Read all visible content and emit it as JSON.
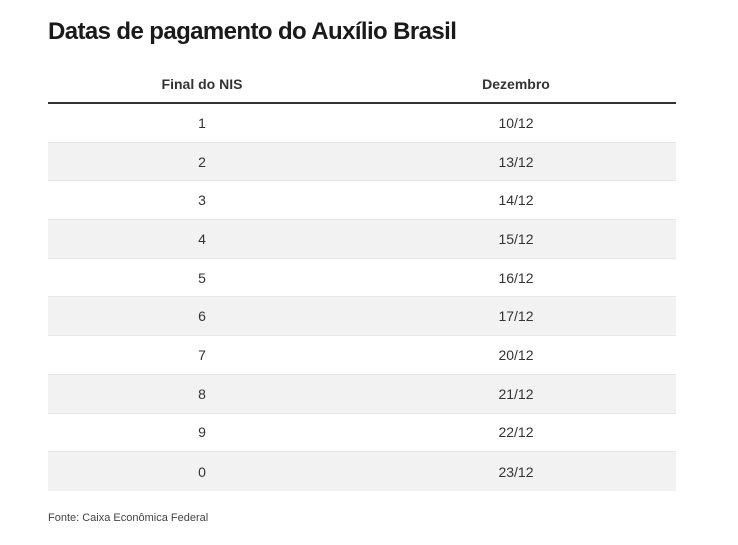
{
  "title": "Datas de pagamento do Auxílio Brasil",
  "source": "Fonte: Caixa Econômica Federal",
  "chart_data": {
    "type": "table",
    "title": "Datas de pagamento do Auxílio Brasil",
    "columns": [
      "Final do NIS",
      "Dezembro"
    ],
    "rows": [
      [
        "1",
        "10/12"
      ],
      [
        "2",
        "13/12"
      ],
      [
        "3",
        "14/12"
      ],
      [
        "4",
        "15/12"
      ],
      [
        "5",
        "16/12"
      ],
      [
        "6",
        "17/12"
      ],
      [
        "7",
        "20/12"
      ],
      [
        "8",
        "21/12"
      ],
      [
        "9",
        "22/12"
      ],
      [
        "0",
        "23/12"
      ]
    ]
  },
  "colors": {
    "row_shade": "#f2f2f2",
    "header_rule": "#333333",
    "text": "#333333"
  }
}
